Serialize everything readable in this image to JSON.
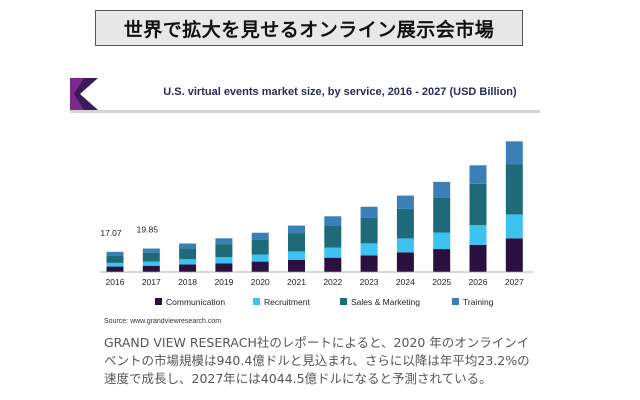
{
  "header": {
    "title": "世界で拡大を見せるオンライン展示会市場"
  },
  "chart_data": {
    "type": "bar",
    "stacked": true,
    "title": "U.S. virtual events market size, by service, 2016 - 2027 (USD Billion)",
    "categories": [
      "2016",
      "2017",
      "2018",
      "2019",
      "2020",
      "2021",
      "2022",
      "2023",
      "2024",
      "2025",
      "2026",
      "2027"
    ],
    "series": [
      {
        "name": "Communication",
        "color": "#2b0f3f",
        "values": [
          4.6,
          5.3,
          6.4,
          7.4,
          8.8,
          10.2,
          12.1,
          14.0,
          16.6,
          19.4,
          23.0,
          28.4
        ]
      },
      {
        "name": "Recruitment",
        "color": "#3dc3f0",
        "values": [
          3.1,
          3.6,
          4.4,
          5.2,
          6.0,
          7.2,
          8.6,
          10.2,
          11.8,
          14.0,
          16.6,
          20.3
        ]
      },
      {
        "name": "Sales & Marketing",
        "color": "#1e6a78",
        "values": [
          6.4,
          7.5,
          9.2,
          11.0,
          12.6,
          15.2,
          18.2,
          21.5,
          25.0,
          29.5,
          35.0,
          42.2
        ]
      },
      {
        "name": "Training",
        "color": "#3c7fb8",
        "values": [
          2.97,
          3.45,
          4.1,
          4.9,
          5.8,
          6.7,
          8.2,
          9.5,
          11.2,
          13.3,
          15.6,
          19.6
        ]
      }
    ],
    "data_labels": {
      "2016": "17.07",
      "2017": "19.85"
    },
    "ylim": [
      0,
      115
    ],
    "grid": false,
    "legend_position": "bottom"
  },
  "source": "Source: www.grandviewresearch.com",
  "description": {
    "lines": [
      "GRAND VIEW RESERACH社のレポートによると、2020 年のオンラインイ",
      "ベントの市場規模は940.4億ドルと見込まれ、さらに以降は年平均23.2%の",
      "速度で成長し、2027年には4044.5億ドルになると予測されている。"
    ]
  }
}
